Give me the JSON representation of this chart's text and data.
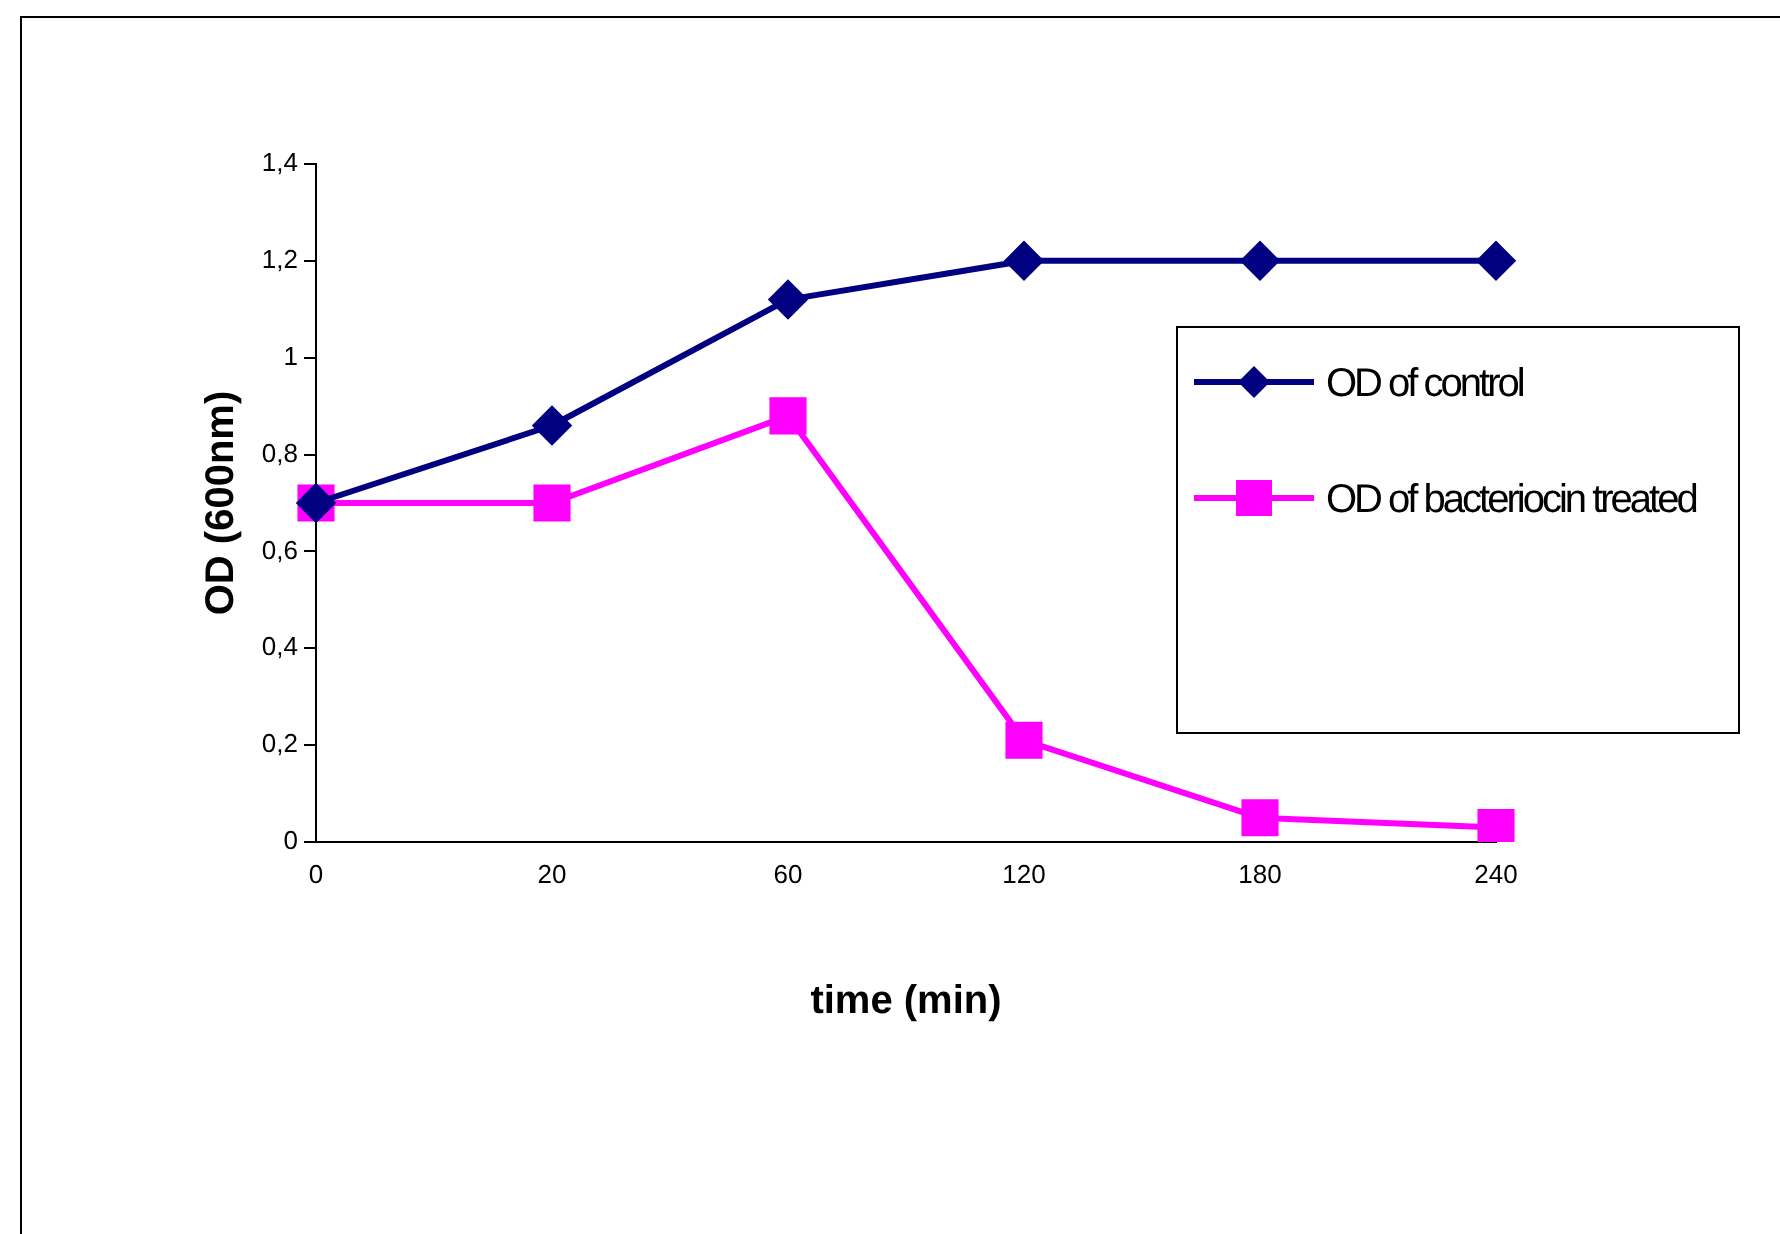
{
  "chart_data": {
    "type": "line",
    "xlabel": "time (min)",
    "ylabel": "OD (600nm)",
    "categories": [
      "0",
      "20",
      "60",
      "120",
      "180",
      "240"
    ],
    "series": [
      {
        "name": "OD of control",
        "color": "#000080",
        "marker": "diamond",
        "values": [
          0.7,
          0.86,
          1.12,
          1.2,
          1.2,
          1.2
        ]
      },
      {
        "name": "OD of bacteriocin treated",
        "color": "#ff00ff",
        "marker": "square",
        "values": [
          0.7,
          0.7,
          0.88,
          0.21,
          0.05,
          0.03
        ]
      }
    ],
    "ylim": [
      0,
      1.4
    ],
    "yticks": [
      0,
      {
        "value": 0.2,
        "label": "0,2"
      },
      {
        "value": 0.4,
        "label": "0,4"
      },
      {
        "value": 0.6,
        "label": "0,6"
      },
      {
        "value": 0.8,
        "label": "0,8"
      },
      1,
      {
        "value": 1.2,
        "label": "1,2"
      },
      {
        "value": 1.4,
        "label": "1,4"
      }
    ],
    "grid": false,
    "legend": "right",
    "line_style": "solid"
  }
}
